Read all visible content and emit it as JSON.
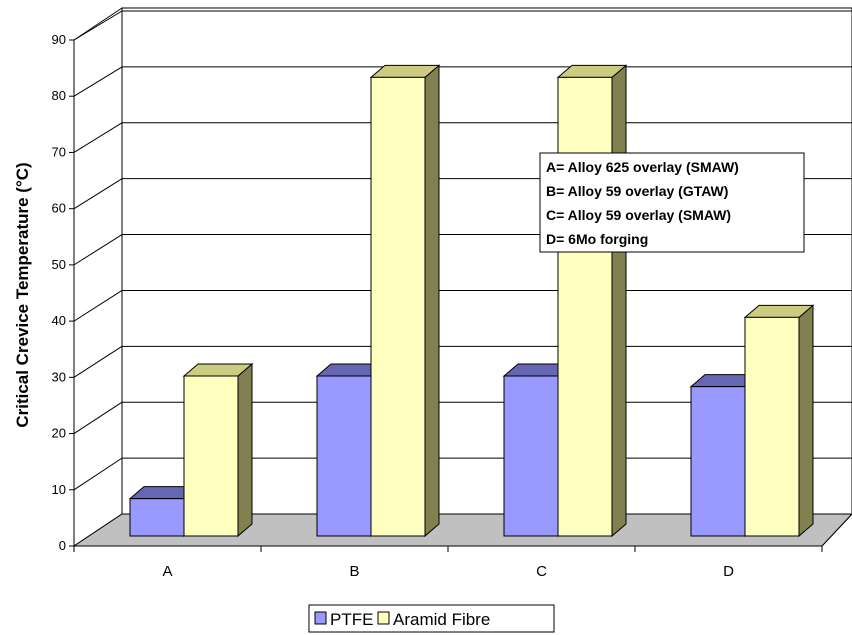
{
  "chart_data": {
    "type": "bar",
    "categories": [
      "A",
      "B",
      "C",
      "D"
    ],
    "series": [
      {
        "name": "PTFE",
        "values": [
          7,
          30,
          30,
          28
        ],
        "color": "#9999ff"
      },
      {
        "name": "Aramid Fibre",
        "values": [
          30,
          86,
          86,
          41
        ],
        "color": "#ffffc0"
      }
    ],
    "ylabel": "Critical Crevice Temperature (°C)",
    "xlabel": "",
    "ylim": [
      0,
      90
    ],
    "yticks": [
      "0",
      "10",
      "20",
      "30",
      "40",
      "50",
      "60",
      "70",
      "80",
      "90"
    ],
    "grid": true,
    "three_d": true,
    "legend_position": "bottom",
    "annotations": [
      "A= Alloy 625 overlay (SMAW)",
      "B= Alloy 59 overlay (GTAW)",
      "C= Alloy 59 overlay (SMAW)",
      "D= 6Mo forging"
    ]
  }
}
